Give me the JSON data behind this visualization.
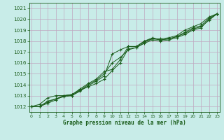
{
  "xlabel": "Graphe pression niveau de la mer (hPa)",
  "bg_color": "#c8ece8",
  "grid_color": "#c0a8c0",
  "line_color": "#1a5c1a",
  "ylim": [
    1011.5,
    1021.5
  ],
  "xlim": [
    -0.3,
    23.3
  ],
  "yticks": [
    1012,
    1013,
    1014,
    1015,
    1016,
    1017,
    1018,
    1019,
    1020,
    1021
  ],
  "xticks": [
    0,
    1,
    2,
    3,
    4,
    5,
    6,
    7,
    8,
    9,
    10,
    11,
    12,
    13,
    14,
    15,
    16,
    17,
    18,
    19,
    20,
    21,
    22,
    23
  ],
  "line1": [
    1012.0,
    1012.2,
    1012.8,
    1013.0,
    1013.0,
    1013.1,
    1013.5,
    1014.0,
    1014.4,
    1015.0,
    1016.0,
    1016.5,
    1017.2,
    1017.4,
    1017.8,
    1018.1,
    1018.0,
    1018.1,
    1018.3,
    1018.6,
    1019.0,
    1019.2,
    1020.0,
    1020.5
  ],
  "line2": [
    1012.0,
    1012.0,
    1012.5,
    1012.7,
    1012.9,
    1013.0,
    1013.4,
    1013.9,
    1014.3,
    1014.8,
    1016.8,
    1017.2,
    1017.5,
    1017.5,
    1018.0,
    1018.3,
    1018.1,
    1018.2,
    1018.4,
    1018.7,
    1019.1,
    1019.3,
    1019.9,
    1020.5
  ],
  "line3": [
    1012.0,
    1012.0,
    1012.4,
    1012.7,
    1013.0,
    1013.1,
    1013.6,
    1014.1,
    1014.5,
    1015.2,
    1015.4,
    1016.3,
    1017.5,
    1017.5,
    1018.0,
    1018.2,
    1018.2,
    1018.3,
    1018.5,
    1019.0,
    1019.3,
    1019.6,
    1020.2,
    1020.5
  ],
  "line4": [
    1012.0,
    1012.0,
    1012.3,
    1012.6,
    1013.0,
    1013.0,
    1013.5,
    1013.8,
    1014.1,
    1014.5,
    1015.3,
    1016.0,
    1017.3,
    1017.4,
    1017.9,
    1018.2,
    1018.1,
    1018.2,
    1018.4,
    1018.8,
    1019.2,
    1019.4,
    1020.1,
    1020.5
  ]
}
